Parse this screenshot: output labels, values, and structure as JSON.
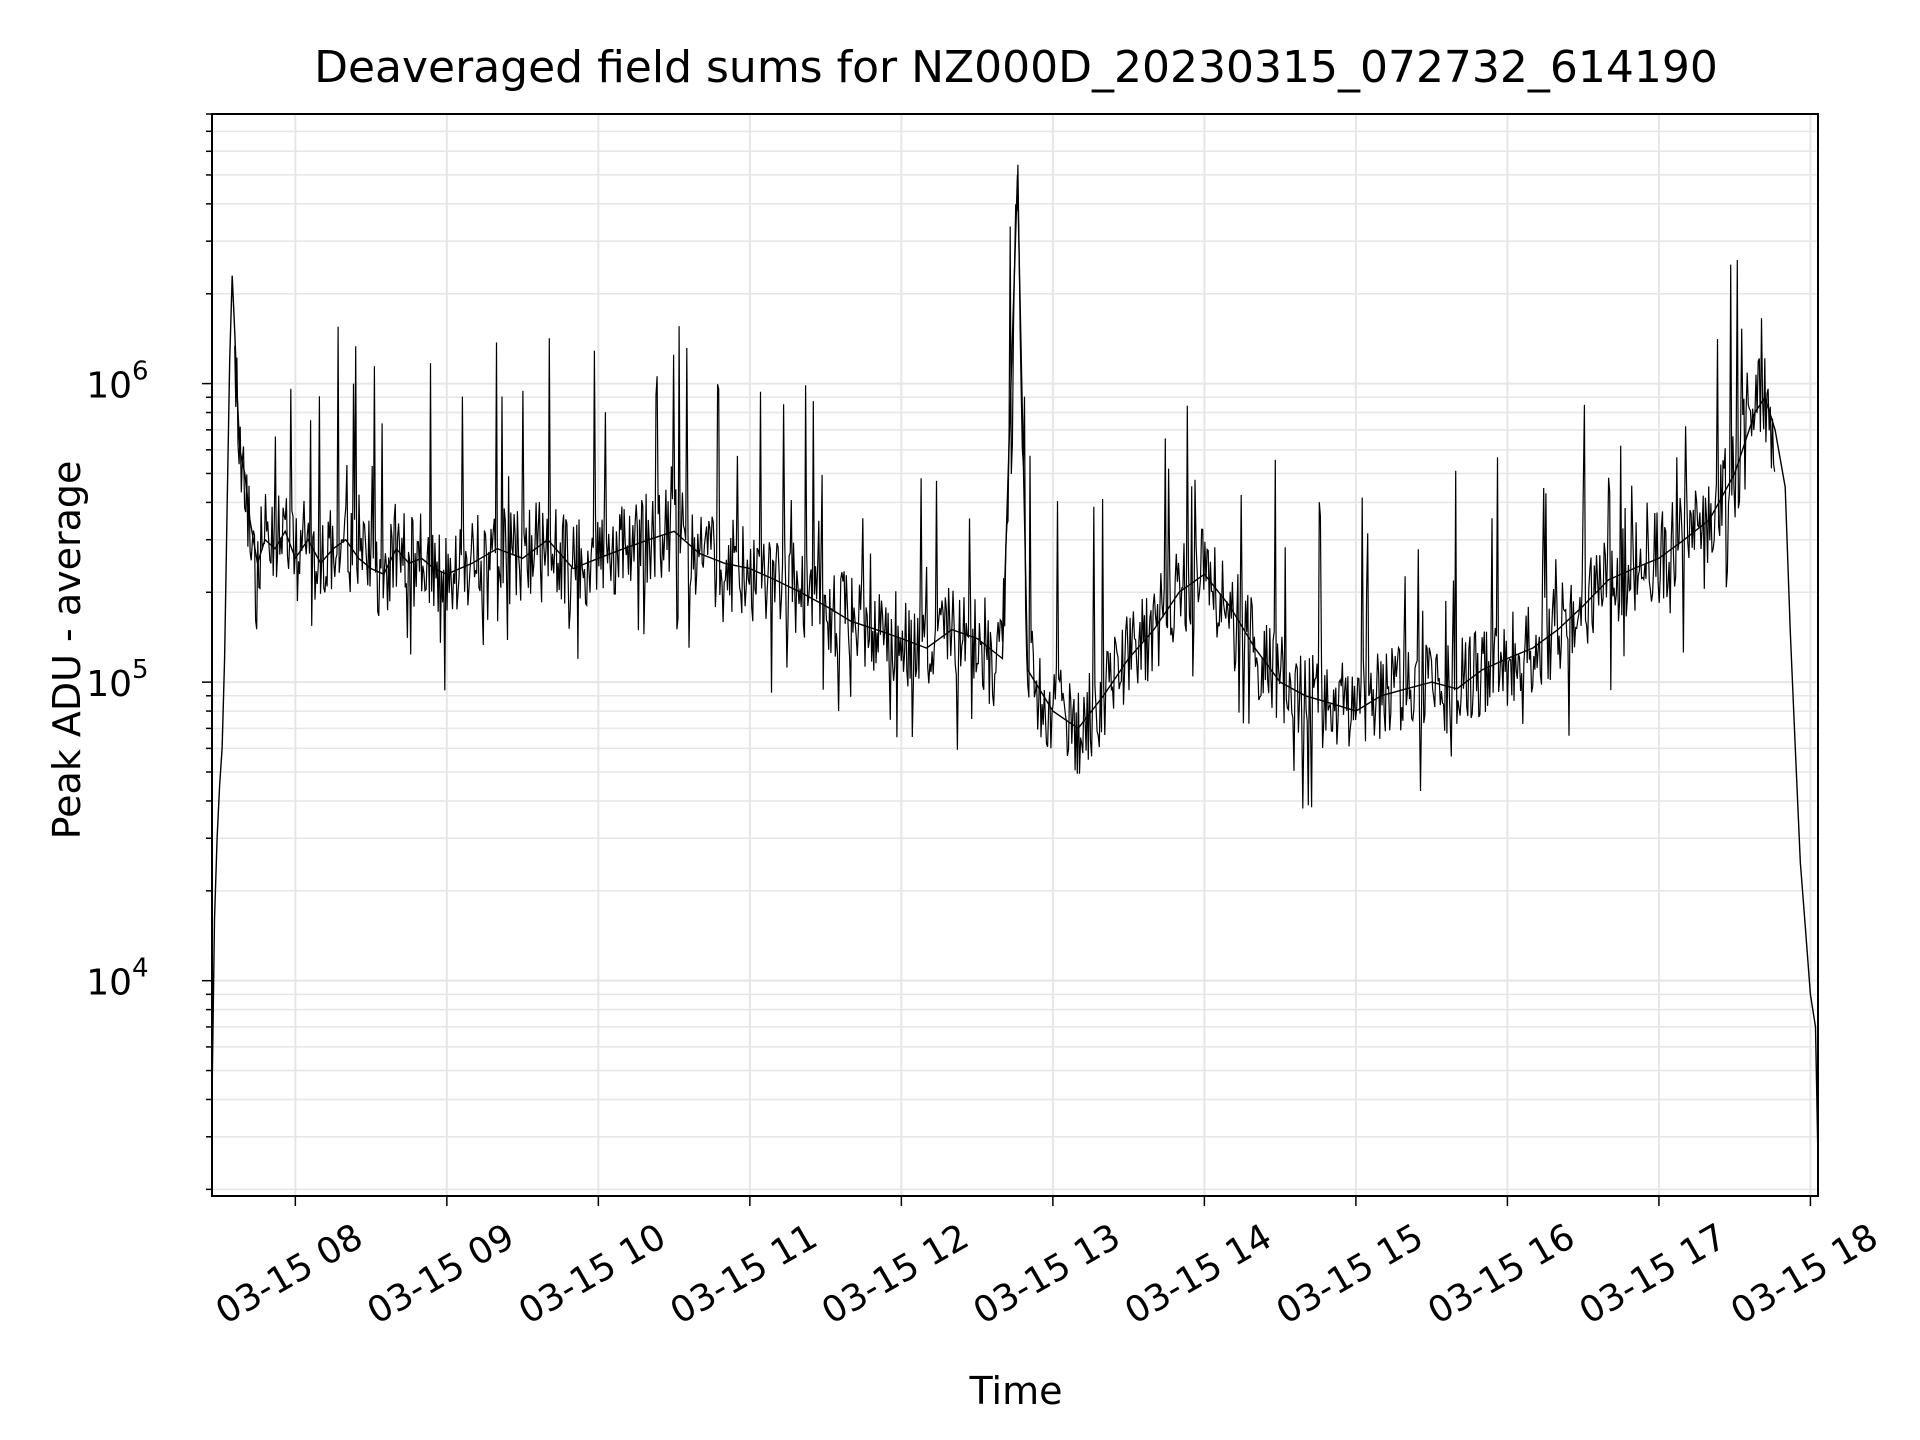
{
  "chart_data": {
    "type": "line",
    "title": "Deaveraged field sums for NZ000D_20230315_072732_614190",
    "xlabel": "Time",
    "ylabel": "Peak ADU - average",
    "y_scale": "log",
    "ylim": [
      1900,
      8000000
    ],
    "xlim": [
      "2023-03-15 07:27",
      "2023-03-15 18:03"
    ],
    "grid": "on (major and minor, light gray)",
    "line_color": "#000000",
    "grid_color": "#e6e6e6",
    "xticks": [
      {
        "value": "2023-03-15 08:00",
        "label": "03-15 08"
      },
      {
        "value": "2023-03-15 09:00",
        "label": "03-15 09"
      },
      {
        "value": "2023-03-15 10:00",
        "label": "03-15 10"
      },
      {
        "value": "2023-03-15 11:00",
        "label": "03-15 11"
      },
      {
        "value": "2023-03-15 12:00",
        "label": "03-15 12"
      },
      {
        "value": "2023-03-15 13:00",
        "label": "03-15 13"
      },
      {
        "value": "2023-03-15 14:00",
        "label": "03-15 14"
      },
      {
        "value": "2023-03-15 15:00",
        "label": "03-15 15"
      },
      {
        "value": "2023-03-15 16:00",
        "label": "03-15 16"
      },
      {
        "value": "2023-03-15 17:00",
        "label": "03-15 17"
      },
      {
        "value": "2023-03-15 18:00",
        "label": "03-15 18"
      }
    ],
    "yticks": [
      {
        "value": 10000,
        "base": "10",
        "exp": "4"
      },
      {
        "value": 100000,
        "base": "10",
        "exp": "5"
      },
      {
        "value": 1000000,
        "base": "10",
        "exp": "6"
      }
    ],
    "series": [
      {
        "x": [
          "2023-03-15 07:27",
          "2023-03-15 07:28",
          "2023-03-15 07:29",
          "2023-03-15 07:30",
          "2023-03-15 07:31",
          "2023-03-15 07:32",
          "2023-03-15 07:33",
          "2023-03-15 07:34",
          "2023-03-15 07:35",
          "2023-03-15 07:36",
          "2023-03-15 07:37",
          "2023-03-15 07:38",
          "2023-03-15 07:40",
          "2023-03-15 07:42",
          "2023-03-15 07:45",
          "2023-03-15 07:48",
          "2023-03-15 07:52",
          "2023-03-15 07:56",
          "2023-03-15 08:00",
          "2023-03-15 08:05",
          "2023-03-15 08:10",
          "2023-03-15 08:15",
          "2023-03-15 08:20",
          "2023-03-15 08:25",
          "2023-03-15 08:30",
          "2023-03-15 08:35",
          "2023-03-15 08:40",
          "2023-03-15 08:45",
          "2023-03-15 08:50",
          "2023-03-15 08:55",
          "2023-03-15 09:00",
          "2023-03-15 09:10",
          "2023-03-15 09:20",
          "2023-03-15 09:30",
          "2023-03-15 09:40",
          "2023-03-15 09:50",
          "2023-03-15 10:00",
          "2023-03-15 10:10",
          "2023-03-15 10:20",
          "2023-03-15 10:30",
          "2023-03-15 10:40",
          "2023-03-15 10:50",
          "2023-03-15 11:00",
          "2023-03-15 11:10",
          "2023-03-15 11:20",
          "2023-03-15 11:30",
          "2023-03-15 11:40",
          "2023-03-15 11:50",
          "2023-03-15 12:00",
          "2023-03-15 12:10",
          "2023-03-15 12:20",
          "2023-03-15 12:30",
          "2023-03-15 12:40",
          "2023-03-15 12:46",
          "2023-03-15 12:50",
          "2023-03-15 13:00",
          "2023-03-15 13:10",
          "2023-03-15 13:20",
          "2023-03-15 13:30",
          "2023-03-15 13:40",
          "2023-03-15 13:50",
          "2023-03-15 14:00",
          "2023-03-15 14:10",
          "2023-03-15 14:20",
          "2023-03-15 14:30",
          "2023-03-15 14:40",
          "2023-03-15 14:50",
          "2023-03-15 15:00",
          "2023-03-15 15:10",
          "2023-03-15 15:20",
          "2023-03-15 15:30",
          "2023-03-15 15:40",
          "2023-03-15 15:50",
          "2023-03-15 16:00",
          "2023-03-15 16:10",
          "2023-03-15 16:20",
          "2023-03-15 16:30",
          "2023-03-15 16:40",
          "2023-03-15 16:50",
          "2023-03-15 17:00",
          "2023-03-15 17:10",
          "2023-03-15 17:20",
          "2023-03-15 17:30",
          "2023-03-15 17:38",
          "2023-03-15 17:42",
          "2023-03-15 17:46",
          "2023-03-15 17:50",
          "2023-03-15 17:52",
          "2023-03-15 17:54",
          "2023-03-15 17:56",
          "2023-03-15 17:58",
          "2023-03-15 18:00",
          "2023-03-15 18:02",
          "2023-03-15 18:03"
        ],
        "y": [
          4000,
          16000,
          30000,
          45000,
          60000,
          120000,
          400000,
          1200000,
          2300000,
          1500000,
          900000,
          600000,
          500000,
          350000,
          250000,
          300000,
          280000,
          320000,
          260000,
          300000,
          250000,
          280000,
          300000,
          260000,
          240000,
          230000,
          280000,
          250000,
          260000,
          240000,
          230000,
          250000,
          280000,
          260000,
          300000,
          240000,
          260000,
          280000,
          300000,
          320000,
          270000,
          250000,
          240000,
          220000,
          200000,
          180000,
          160000,
          150000,
          140000,
          130000,
          150000,
          140000,
          120000,
          5000000,
          110000,
          80000,
          70000,
          90000,
          120000,
          150000,
          200000,
          230000,
          180000,
          130000,
          100000,
          90000,
          85000,
          80000,
          90000,
          95000,
          100000,
          95000,
          110000,
          120000,
          130000,
          150000,
          180000,
          220000,
          240000,
          260000,
          300000,
          350000,
          500000,
          800000,
          900000,
          700000,
          450000,
          150000,
          60000,
          25000,
          15000,
          9000,
          7000,
          2500
        ]
      }
    ]
  }
}
